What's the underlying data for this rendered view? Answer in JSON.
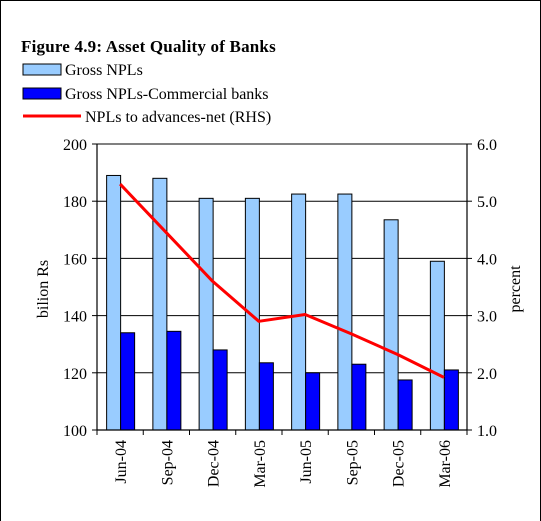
{
  "chart_data": {
    "type": "bar+line",
    "title": "Figure 4.9: Asset Quality of Banks",
    "categories": [
      "Jun-04",
      "Sep-04",
      "Dec-04",
      "Mar-05",
      "Jun-05",
      "Sep-05",
      "Dec-05",
      "Mar-06"
    ],
    "series": [
      {
        "name": "Gross NPLs",
        "type": "bar",
        "axis": "left",
        "color": "#99ccff",
        "values": [
          189,
          188,
          181,
          181,
          182.5,
          182.5,
          173.5,
          159
        ]
      },
      {
        "name": "Gross NPLs-Commercial banks",
        "type": "bar",
        "axis": "left",
        "color": "#0000ff",
        "values": [
          134,
          134.5,
          128,
          123.5,
          120,
          123,
          117.5,
          121
        ]
      },
      {
        "name": "NPLs to advances-net (RHS)",
        "type": "line",
        "axis": "right",
        "color": "#ff0000",
        "values": [
          5.3,
          4.45,
          3.6,
          2.9,
          3.02,
          2.68,
          2.32,
          1.92
        ]
      }
    ],
    "ylabel": "bilion Rs",
    "y2label": "percent",
    "ylim": [
      100,
      200
    ],
    "y_ticks": [
      "100",
      "120",
      "140",
      "160",
      "180",
      "200"
    ],
    "y2lim": [
      1.0,
      6.0
    ],
    "y2_ticks": [
      "1.0",
      "2.0",
      "3.0",
      "4.0",
      "5.0",
      "6.0"
    ],
    "grid": true,
    "legend_position": "top-left"
  }
}
